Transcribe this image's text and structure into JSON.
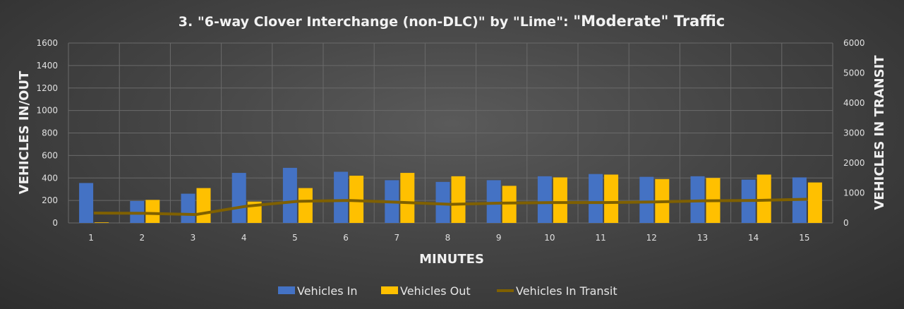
{
  "chart_data": {
    "type": "bar",
    "title_main": "3. \"6-way Clover Interchange (non-DLC)\" by \"Lime\": ",
    "title_emph": "\"Moderate\" Traffic",
    "xlabel": "MINUTES",
    "ylabel": "VEHICLES IN/OUT",
    "y2label": "VEHICLES IN TRANSIT",
    "ylim": [
      0,
      1600
    ],
    "yticks": [
      "0",
      "200",
      "400",
      "600",
      "800",
      "1000",
      "1200",
      "1400",
      "1600"
    ],
    "y2lim": [
      0,
      6000
    ],
    "y2ticks": [
      "0",
      "1000",
      "2000",
      "3000",
      "4000",
      "5000",
      "6000"
    ],
    "grid": true,
    "legend_position": "bottom",
    "categories": [
      "1",
      "2",
      "3",
      "4",
      "5",
      "6",
      "7",
      "8",
      "9",
      "10",
      "11",
      "12",
      "13",
      "14",
      "15"
    ],
    "series": [
      {
        "name": "Vehicles In",
        "type": "bar",
        "axis": "left",
        "color": "#4472c4",
        "values": [
          355,
          195,
          260,
          445,
          490,
          455,
          380,
          365,
          380,
          415,
          435,
          410,
          415,
          385,
          405
        ]
      },
      {
        "name": "Vehicles Out",
        "type": "bar",
        "axis": "left",
        "color": "#ffc000",
        "values": [
          5,
          205,
          310,
          190,
          310,
          420,
          445,
          415,
          330,
          405,
          430,
          390,
          400,
          430,
          360
        ]
      },
      {
        "name": "Vehicles In Transit",
        "type": "line",
        "axis": "right",
        "color": "#7f6000",
        "values": [
          330,
          320,
          280,
          560,
          720,
          750,
          690,
          620,
          660,
          680,
          680,
          700,
          740,
          750,
          790
        ]
      }
    ]
  }
}
